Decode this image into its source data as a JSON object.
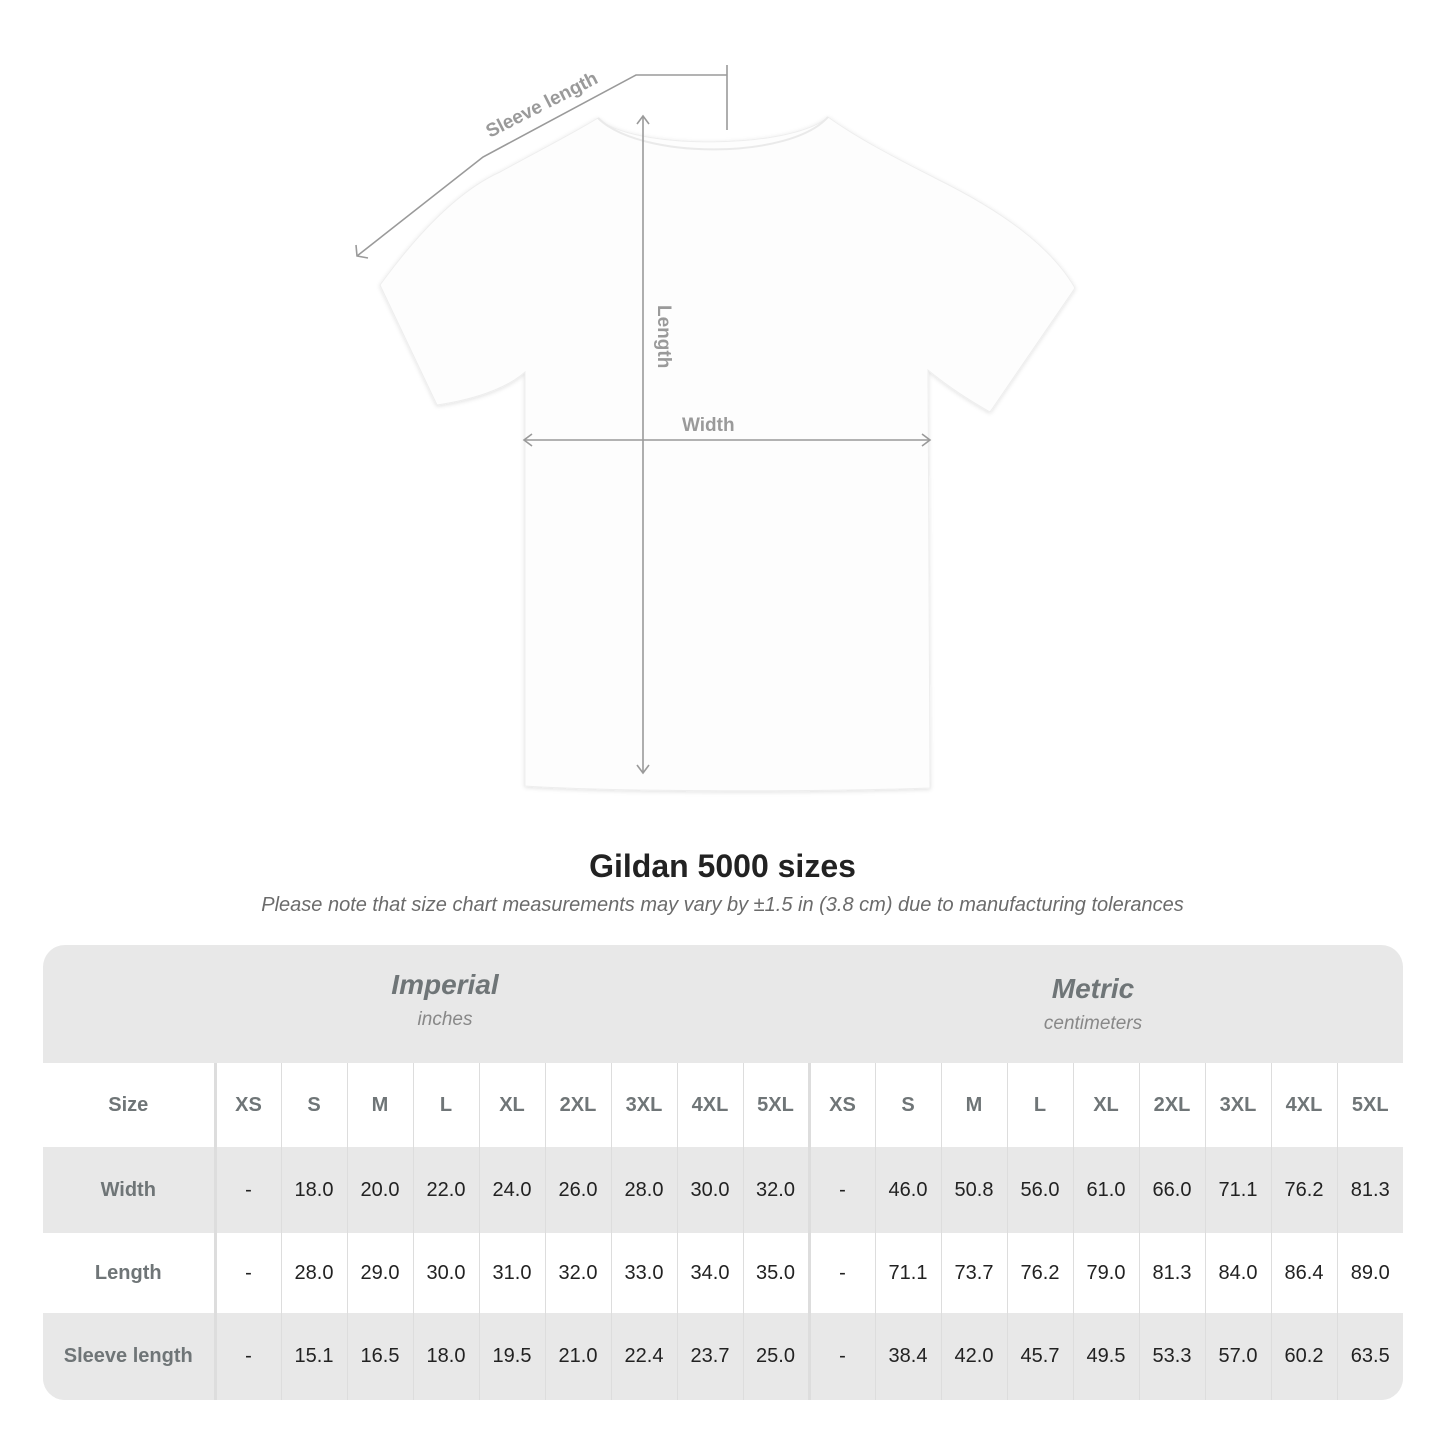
{
  "diagram": {
    "labels": {
      "sleeve": "Sleeve length",
      "length": "Length",
      "width": "Width"
    },
    "colors": {
      "measure_line": "#9a9a9a",
      "shirt": "#fdfdfd"
    }
  },
  "title": "Gildan 5000 sizes",
  "subtitle": "Please note that size chart measurements may vary by ±1.5 in (3.8 cm) due to manufacturing tolerances",
  "table": {
    "imperial": {
      "system": "Imperial",
      "unit": "inches"
    },
    "metric": {
      "system": "Metric",
      "unit": "centimeters"
    },
    "size_label": "Size",
    "sizes": [
      "XS",
      "S",
      "M",
      "L",
      "XL",
      "2XL",
      "3XL",
      "4XL",
      "5XL"
    ],
    "rows": [
      {
        "label": "Width",
        "imperial": [
          "-",
          "18.0",
          "20.0",
          "22.0",
          "24.0",
          "26.0",
          "28.0",
          "30.0",
          "32.0"
        ],
        "metric": [
          "-",
          "46.0",
          "50.8",
          "56.0",
          "61.0",
          "66.0",
          "71.1",
          "76.2",
          "81.3"
        ]
      },
      {
        "label": "Length",
        "imperial": [
          "-",
          "28.0",
          "29.0",
          "30.0",
          "31.0",
          "32.0",
          "33.0",
          "34.0",
          "35.0"
        ],
        "metric": [
          "-",
          "71.1",
          "73.7",
          "76.2",
          "79.0",
          "81.3",
          "84.0",
          "86.4",
          "89.0"
        ]
      },
      {
        "label": "Sleeve length",
        "imperial": [
          "-",
          "15.1",
          "16.5",
          "18.0",
          "19.5",
          "21.0",
          "22.4",
          "23.7",
          "25.0"
        ],
        "metric": [
          "-",
          "38.4",
          "42.0",
          "45.7",
          "49.5",
          "53.3",
          "57.0",
          "60.2",
          "63.5"
        ]
      }
    ]
  }
}
